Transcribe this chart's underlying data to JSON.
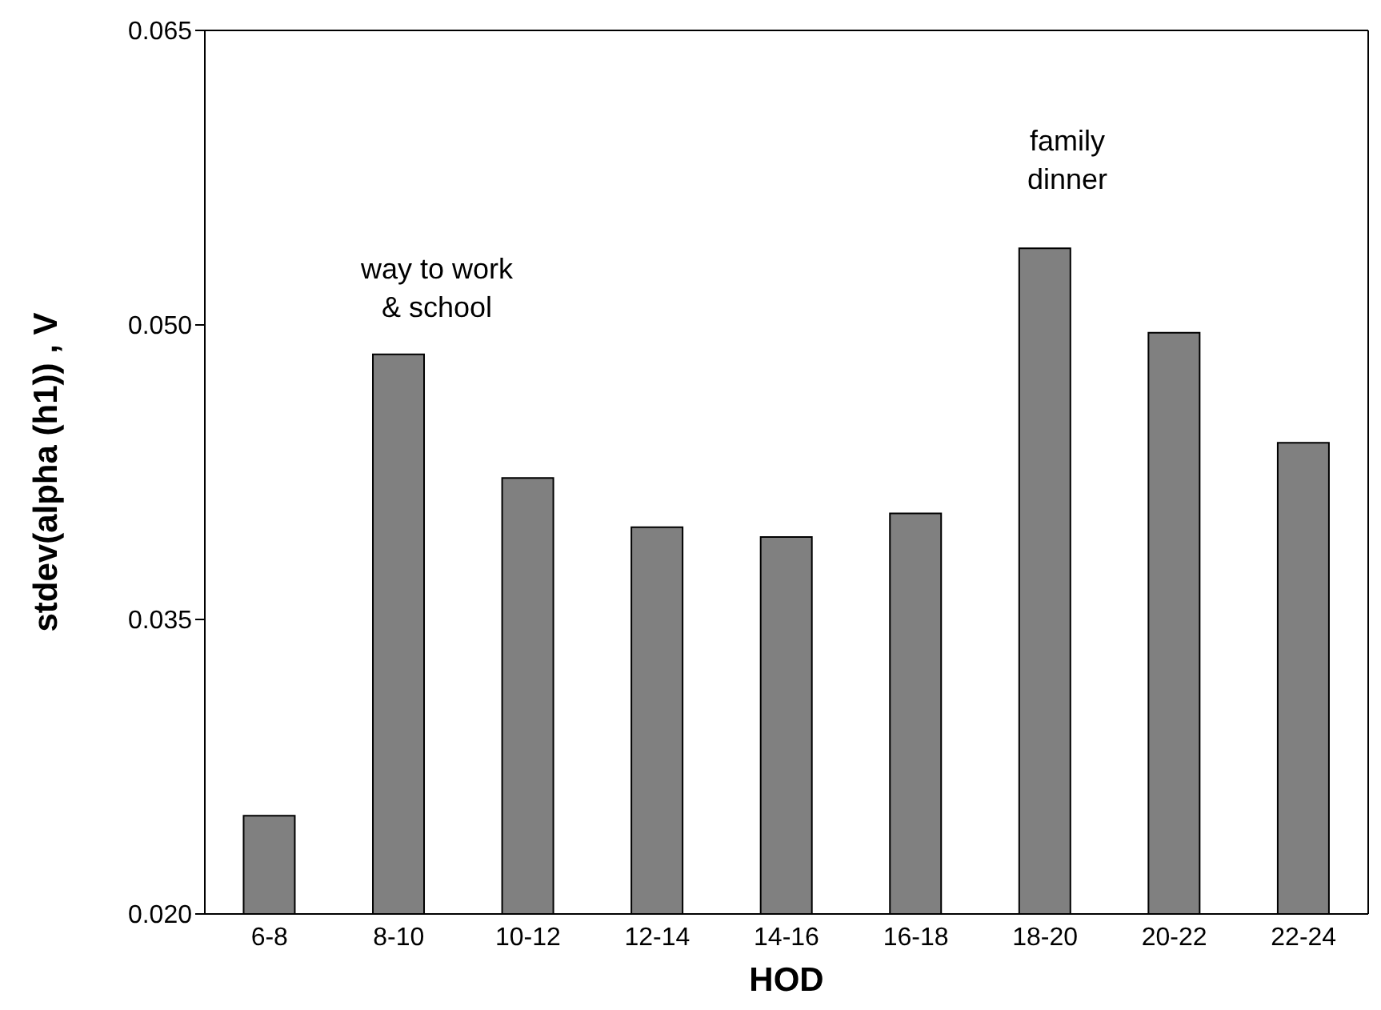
{
  "chart_data": {
    "type": "bar",
    "xlabel": "HOD",
    "ylabel": "stdev(alpha (h1))  , V",
    "categories": [
      "6-8",
      "8-10",
      "10-12",
      "12-14",
      "14-16",
      "16-18",
      "18-20",
      "20-22",
      "22-24"
    ],
    "values": [
      0.025,
      0.0485,
      0.0422,
      0.0397,
      0.0392,
      0.0404,
      0.0539,
      0.0496,
      0.044
    ],
    "color": "#808080",
    "ylim": [
      0.02,
      0.065
    ],
    "yticks": [
      {
        "value": 0.02,
        "label": "0.020"
      },
      {
        "value": 0.035,
        "label": "0.035"
      },
      {
        "value": 0.05,
        "label": "0.050"
      },
      {
        "value": 0.065,
        "label": "0.065"
      }
    ],
    "grid": false,
    "legend": false,
    "annotations": [
      "way to work\n& school",
      "family\ndinner"
    ]
  }
}
